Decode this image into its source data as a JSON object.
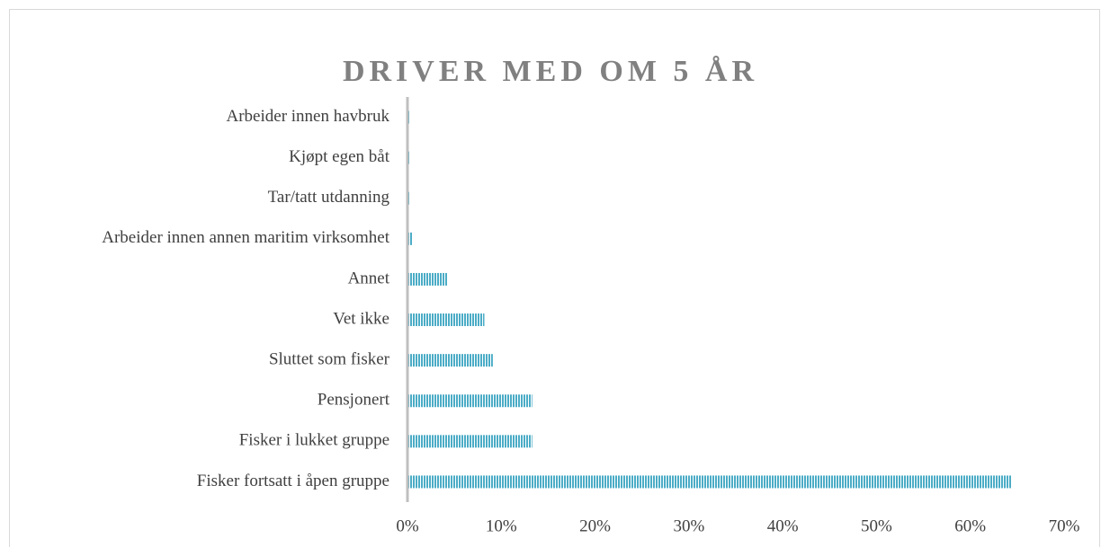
{
  "chart_data": {
    "type": "bar",
    "orientation": "horizontal",
    "title": "DRIVER MED OM 5 ÅR",
    "categories": [
      "Arbeider innen havbruk",
      "Kjøpt egen båt",
      "Tar/tatt utdanning",
      "Arbeider innen annen maritim virksomhet",
      "Annet",
      "Vet ikke",
      "Sluttet som fisker",
      "Pensjonert",
      "Fisker i lukket gruppe",
      "Fisker fortsatt i åpen gruppe"
    ],
    "values": [
      0.2,
      0.2,
      0.2,
      0.5,
      4.3,
      8.2,
      9.1,
      13.3,
      13.3,
      64.4
    ],
    "color": "#4bacc6",
    "xlim": [
      0,
      70
    ],
    "xticks": [
      {
        "value": 0,
        "label": "0%"
      },
      {
        "value": 10,
        "label": "10%"
      },
      {
        "value": 20,
        "label": "20%"
      },
      {
        "value": 30,
        "label": "30%"
      },
      {
        "value": 40,
        "label": "40%"
      },
      {
        "value": 50,
        "label": "50%"
      },
      {
        "value": 60,
        "label": "60%"
      },
      {
        "value": 70,
        "label": "70%"
      }
    ],
    "grid": false
  }
}
